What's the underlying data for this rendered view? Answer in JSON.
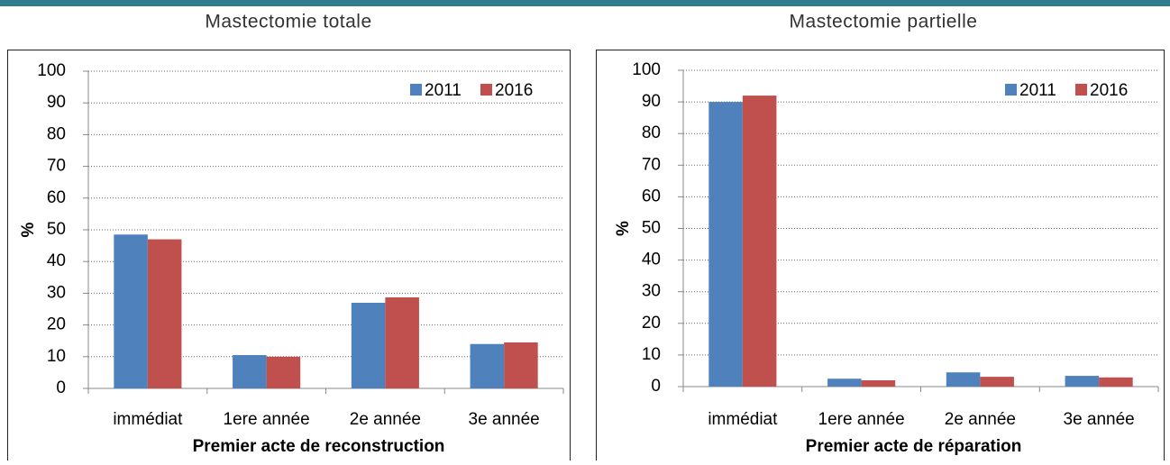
{
  "chart_data": [
    {
      "type": "bar",
      "title": "Mastectomie totale",
      "x_label": "Premier acte de reconstruction",
      "y_label": "%",
      "categories": [
        "immédiat",
        "1ere année",
        "2e année",
        "3e année"
      ],
      "series": [
        {
          "name": "2011",
          "color": "#4f81bd",
          "values": [
            48.5,
            10.5,
            27,
            14
          ]
        },
        {
          "name": "2016",
          "color": "#c0504d",
          "values": [
            47,
            10,
            28.7,
            14.5
          ]
        }
      ],
      "ylim": [
        0,
        100
      ],
      "yticks": [
        0,
        10,
        20,
        30,
        40,
        50,
        60,
        70,
        80,
        90,
        100
      ],
      "grid": true,
      "legend": "top-right"
    },
    {
      "type": "bar",
      "title": "Mastectomie partielle",
      "x_label": "Premier acte de réparation",
      "y_label": "%",
      "categories": [
        "immédiat",
        "1ere année",
        "2e année",
        "3e année"
      ],
      "series": [
        {
          "name": "2011",
          "color": "#4f81bd",
          "values": [
            90,
            2.5,
            4.5,
            3.4
          ]
        },
        {
          "name": "2016",
          "color": "#c0504d",
          "values": [
            92,
            2,
            3.1,
            2.9
          ]
        }
      ],
      "ylim": [
        0,
        100
      ],
      "yticks": [
        0,
        10,
        20,
        30,
        40,
        50,
        60,
        70,
        80,
        90,
        100
      ],
      "grid": true,
      "legend": "top-right"
    }
  ]
}
